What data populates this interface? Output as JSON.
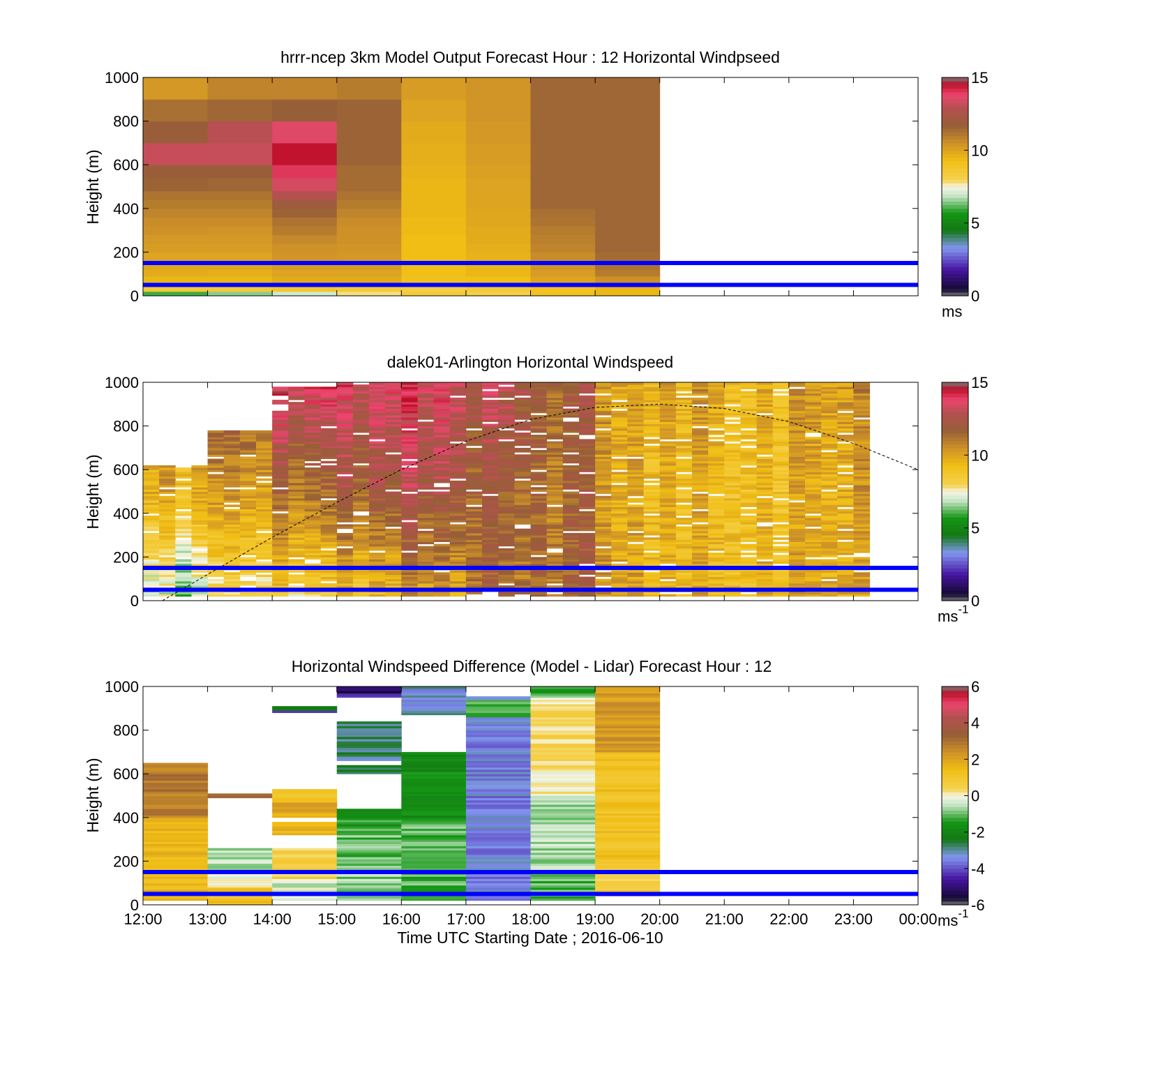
{
  "figure": {
    "xlabel": "Time UTC  Starting Date ; 2016-06-10",
    "x_ticks": [
      "12:00",
      "13:00",
      "14:00",
      "15:00",
      "16:00",
      "17:00",
      "18:00",
      "19:00",
      "20:00",
      "21:00",
      "22:00",
      "23:00",
      "00:00"
    ],
    "line_color": "#0000ff"
  },
  "chart_data": [
    {
      "type": "heatmap",
      "title": "hrrr-ncep 3km Model Output   Forecast Hour : 12 Horizontal Windpseed",
      "ylabel": "Height (m)",
      "xlim": [
        "12:00",
        "00:00"
      ],
      "ylim": [
        0,
        1000
      ],
      "y_ticks": [
        "0",
        "200",
        "400",
        "600",
        "800",
        "1000"
      ],
      "grid": false,
      "colorbar": {
        "ticks": [
          "0",
          "5",
          "10",
          "15"
        ],
        "unit": "ms",
        "exponent": "",
        "range": [
          0,
          15
        ]
      },
      "hlines_m": [
        50,
        150
      ],
      "data_end_hour": 20,
      "hour_bins": [
        "12:00",
        "13:00",
        "14:00",
        "15:00",
        "16:00",
        "17:00",
        "18:00",
        "19:00"
      ],
      "height_bins_m": [
        0,
        20,
        40,
        60,
        90,
        120,
        160,
        200,
        240,
        280,
        320,
        360,
        400,
        440,
        480,
        540,
        600,
        700,
        800,
        900,
        1000
      ],
      "values_ms": [
        [
          6,
          6.5,
          7,
          7.8,
          8.5,
          8.2,
          9,
          9.5
        ],
        [
          8.5,
          8.5,
          8.7,
          8.5,
          8.2,
          8.5,
          9,
          9.5
        ],
        [
          9.5,
          9.5,
          9.5,
          9.2,
          9,
          9.2,
          9.8,
          10.2
        ],
        [
          9.5,
          9.5,
          9.8,
          9.8,
          9.1,
          9.2,
          10,
          10.5
        ],
        [
          9.8,
          9.7,
          10,
          10,
          9.2,
          9.5,
          10.2,
          11
        ],
        [
          9.9,
          9.9,
          10.2,
          10.2,
          9.2,
          9.5,
          10.4,
          11.2
        ],
        [
          10,
          10,
          10.4,
          10.3,
          9.3,
          9.6,
          10.6,
          11.4
        ],
        [
          10.2,
          10.2,
          10.5,
          10.4,
          9.3,
          9.7,
          10.8,
          11.5
        ],
        [
          10.3,
          10.3,
          10.7,
          10.5,
          9.3,
          9.8,
          10.9,
          11.5
        ],
        [
          10.5,
          10.4,
          11,
          10.5,
          9.4,
          9.8,
          11,
          11.5
        ],
        [
          10.6,
          10.6,
          11.2,
          10.6,
          9.4,
          9.9,
          11.2,
          11.5
        ],
        [
          10.8,
          10.8,
          11.6,
          10.8,
          9.5,
          9.9,
          11.3,
          11.5
        ],
        [
          11,
          11,
          12,
          11,
          9.5,
          10,
          11.5,
          11.5
        ],
        [
          11.2,
          11.2,
          12.8,
          11.2,
          9.5,
          10,
          11.5,
          11.5
        ],
        [
          11.6,
          11.5,
          13.4,
          11.4,
          9.5,
          10,
          11.5,
          11.5
        ],
        [
          11.8,
          11.8,
          14,
          11.4,
          9.6,
          10.1,
          11.5,
          11.5
        ],
        [
          13.2,
          13.2,
          14.5,
          11.6,
          9.7,
          10.2,
          11.5,
          11.5
        ],
        [
          11.8,
          13,
          13.6,
          11.6,
          9.8,
          10.3,
          11.5,
          11.5
        ],
        [
          11.3,
          11.5,
          11.7,
          11.6,
          10,
          10.4,
          11.5,
          11.5
        ],
        [
          10.3,
          10.8,
          10.8,
          11,
          10.2,
          10.4,
          11.5,
          11.5
        ]
      ]
    },
    {
      "type": "heatmap",
      "title": "dalek01-Arlington  Horizontal Windspeed",
      "ylabel": "Height (m)",
      "xlim": [
        "12:00",
        "00:00"
      ],
      "ylim": [
        0,
        1000
      ],
      "y_ticks": [
        "0",
        "200",
        "400",
        "600",
        "800",
        "1000"
      ],
      "grid": false,
      "colorbar": {
        "ticks": [
          "0",
          "5",
          "10",
          "15"
        ],
        "unit": "ms",
        "exponent": "-1",
        "range": [
          0,
          15
        ]
      },
      "hlines_m": [
        50,
        150
      ],
      "data_start_hour": 12,
      "data_end_hour": 23.25,
      "columns_per_hour": 4,
      "column_mean_profile_note": "",
      "column_profiles_ms": [
        {
          "from": "12:00",
          "low": 6.5,
          "mid": 9.5,
          "high": 10.5,
          "top_missing_above_m": 620
        },
        {
          "from": "13:00",
          "low": 7.5,
          "mid": 10,
          "high": 12,
          "top_missing_above_m": 780
        },
        {
          "from": "14:00",
          "low": 8.5,
          "mid": 11.5,
          "high": 14,
          "top_missing_above_m": 980
        },
        {
          "from": "15:00",
          "low": 9,
          "mid": 12,
          "high": 13.5,
          "top_missing_above_m": 1000
        },
        {
          "from": "16:00",
          "low": 10,
          "mid": 12.5,
          "high": 13.5,
          "top_missing_above_m": 1000
        },
        {
          "from": "17:00",
          "low": 11.5,
          "mid": 12,
          "high": 13,
          "top_missing_above_m": 1000
        },
        {
          "from": "18:00",
          "low": 11.5,
          "mid": 11.5,
          "high": 12,
          "top_missing_above_m": 1000
        },
        {
          "from": "19:00",
          "low": 10,
          "mid": 9.8,
          "high": 10,
          "top_missing_above_m": 1000
        },
        {
          "from": "20:00",
          "low": 9.5,
          "mid": 9.5,
          "high": 10,
          "top_missing_above_m": 1000
        },
        {
          "from": "21:00",
          "low": 9.5,
          "mid": 9.3,
          "high": 9.6,
          "top_missing_above_m": 1000
        },
        {
          "from": "22:00",
          "low": 9.8,
          "mid": 9.6,
          "high": 10.2,
          "top_missing_above_m": 1000
        },
        {
          "from": "23:00",
          "low": 10.2,
          "mid": 10.5,
          "high": 11,
          "top_missing_above_m": 1000
        }
      ],
      "dashed_curve": {
        "x_hours": [
          12.3,
          13,
          14,
          15,
          16,
          17,
          18,
          19,
          20,
          21,
          22,
          23,
          24
        ],
        "y_m": [
          0,
          120,
          290,
          450,
          600,
          730,
          830,
          885,
          900,
          880,
          820,
          720,
          600
        ]
      }
    },
    {
      "type": "heatmap",
      "title": "Horizontal Windspeed Difference (Model - Lidar) Forecast Hour : 12",
      "ylabel": "Height (m)",
      "xlabel": "Time UTC  Starting Date ; 2016-06-10",
      "xlim": [
        "12:00",
        "00:00"
      ],
      "ylim": [
        0,
        1000
      ],
      "y_ticks": [
        "0",
        "200",
        "400",
        "600",
        "800",
        "1000"
      ],
      "grid": false,
      "colorbar": {
        "ticks": [
          "-6",
          "-4",
          "-2",
          "0",
          "2",
          "4",
          "6"
        ],
        "unit": "ms",
        "exponent": "-1",
        "range": [
          -6,
          6
        ]
      },
      "hlines_m": [
        50,
        150
      ],
      "columns": [
        {
          "hour": "12:00",
          "segments": [
            [
              20,
              400,
              1.5
            ],
            [
              400,
              650,
              2.8
            ]
          ]
        },
        {
          "hour": "13:00",
          "segments": [
            [
              0,
              80,
              1.2
            ],
            [
              80,
              160,
              0
            ],
            [
              160,
              260,
              -0.5
            ],
            [
              490,
              510,
              3
            ]
          ]
        },
        {
          "hour": "14:00",
          "segments": [
            [
              20,
              120,
              -0.3
            ],
            [
              120,
              260,
              0.6
            ],
            [
              320,
              380,
              1.5
            ],
            [
              400,
              470,
              1.8
            ],
            [
              470,
              530,
              1.2
            ],
            [
              880,
              890,
              -4.2
            ],
            [
              890,
              910,
              -2.8
            ]
          ]
        },
        {
          "hour": "15:00",
          "segments": [
            [
              20,
              150,
              -0.8
            ],
            [
              150,
              350,
              -1
            ],
            [
              350,
              440,
              -1.4
            ],
            [
              600,
              640,
              -2.6
            ],
            [
              660,
              840,
              -2.8
            ],
            [
              950,
              970,
              -4.2
            ],
            [
              970,
              1000,
              -5.2
            ]
          ]
        },
        {
          "hour": "16:00",
          "segments": [
            [
              20,
              400,
              -1.1
            ],
            [
              400,
              700,
              -1.8
            ],
            [
              870,
              1000,
              -3.2
            ]
          ]
        },
        {
          "hour": "17:00",
          "segments": [
            [
              20,
              860,
              -3.5
            ],
            [
              860,
              940,
              -1.2
            ],
            [
              940,
              955,
              -3
            ]
          ]
        },
        {
          "hour": "18:00",
          "segments": [
            [
              20,
              150,
              -1
            ],
            [
              150,
              500,
              -0.6
            ],
            [
              500,
              700,
              0.2
            ],
            [
              700,
              950,
              0.4
            ],
            [
              950,
              1000,
              -1.2
            ]
          ]
        },
        {
          "hour": "19:00",
          "segments": [
            [
              40,
              200,
              0.6
            ],
            [
              200,
              700,
              1.2
            ],
            [
              700,
              1000,
              2.2
            ]
          ]
        }
      ]
    }
  ]
}
